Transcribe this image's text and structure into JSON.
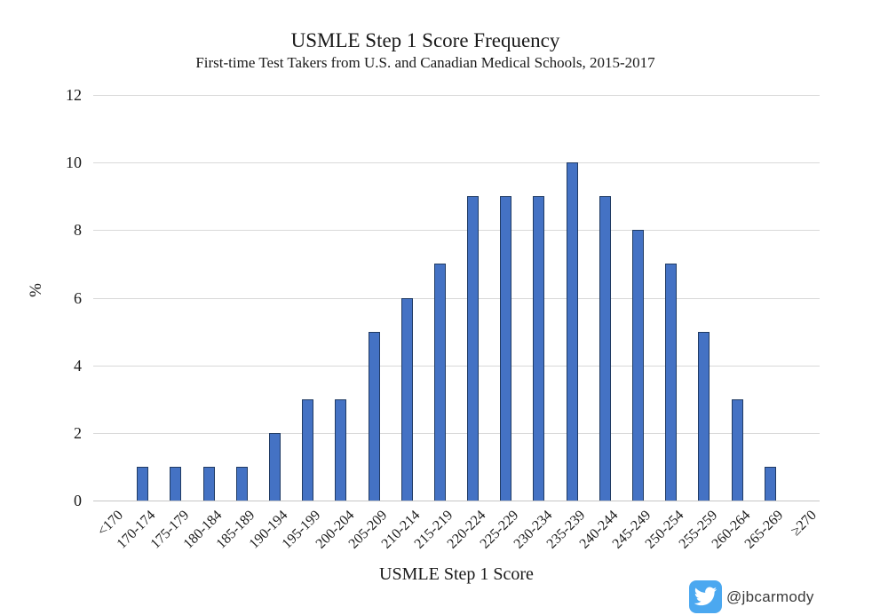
{
  "chart_data": {
    "type": "bar",
    "title": "USMLE Step 1 Score Frequency",
    "subtitle": "First-time Test Takers from U.S. and Canadian Medical Schools, 2015-2017",
    "xlabel": "USMLE Step 1 Score",
    "ylabel": "%",
    "ylim": [
      0,
      12
    ],
    "yticks": [
      0,
      2,
      4,
      6,
      8,
      10,
      12
    ],
    "grid": true,
    "legend": false,
    "categories": [
      "<170",
      "170-174",
      "175-179",
      "180-184",
      "185-189",
      "190-194",
      "195-199",
      "200-204",
      "205-209",
      "210-214",
      "215-219",
      "220-224",
      "225-229",
      "230-234",
      "235-239",
      "240-244",
      "245-249",
      "250-254",
      "255-259",
      "260-264",
      "265-269",
      "≥270"
    ],
    "values": [
      0,
      1,
      1,
      1,
      1,
      2,
      3,
      3,
      5,
      6,
      7,
      9,
      9,
      9,
      10,
      9,
      8,
      7,
      5,
      3,
      1,
      0
    ],
    "bar_fill": "#4472C4",
    "bar_border": "#203B64",
    "gridline_color": "#D9D9D9",
    "axisline_color": "#C6C6C6"
  },
  "footer": {
    "twitter_handle": "@jbcarmody",
    "twitter_icon": "twitter-bird-icon",
    "twitter_blue": "#4BA8F0"
  }
}
